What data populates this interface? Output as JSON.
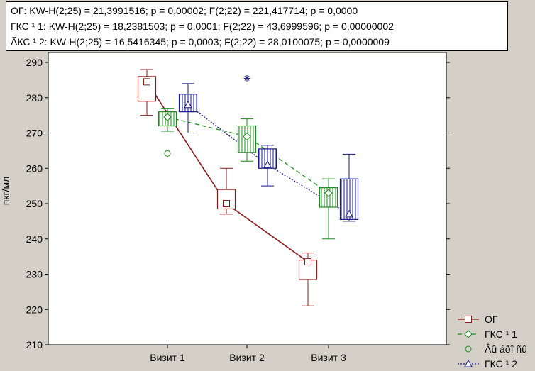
{
  "stats": [
    "ОГ:  KW-H(2;25) = 21,3991516; p = 0,00002;  F(2;22) = 221,417714; p = 0,0000",
    "ГКС ¹  1:  KW-H(2;25) = 18,2381503; p = 0,0001;  F(2;22) = 43,6999596; p = 0,00000002",
    "ÃКС ¹  2:  KW-H(2;25) = 16,5416345; p = 0,0003;  F(2;22) = 28,0100075; p = 0,0000009"
  ],
  "chart_data": {
    "type": "box",
    "categories": [
      "Визит 1",
      "Визит 2",
      "Визит 3"
    ],
    "ylabel": "пкг/мл",
    "xlabel": "",
    "ylim": [
      210,
      290
    ],
    "yticks": [
      210,
      220,
      230,
      240,
      250,
      260,
      270,
      280,
      290
    ],
    "grid": false,
    "legend_position": "bottom-right",
    "series": [
      {
        "name": "ОГ",
        "color": "#8b1a1a",
        "marker": "square",
        "line": "solid",
        "fill": "none",
        "boxes": [
          {
            "median": 284.5,
            "q1": 279,
            "q3": 286,
            "min": 275,
            "max": 288
          },
          {
            "median": 250,
            "q1": 248.5,
            "q3": 254,
            "min": 247,
            "max": 260
          },
          {
            "median": 233.5,
            "q1": 228.5,
            "q3": 234,
            "min": 221,
            "max": 236
          }
        ]
      },
      {
        "name": "ГКС ¹  1",
        "color": "#1e8b1e",
        "marker": "diamond",
        "line": "dashed",
        "fill": "vertical-hatch",
        "boxes": [
          {
            "median": 274.5,
            "q1": 272,
            "q3": 276,
            "min": 270.5,
            "max": 277
          },
          {
            "median": 269,
            "q1": 264.5,
            "q3": 272,
            "min": 262,
            "max": 274
          },
          {
            "median": 253,
            "q1": 249,
            "q3": 254.5,
            "min": 240,
            "max": 257
          }
        ]
      },
      {
        "name": "ÃКС ¹  2",
        "legend_label": "ГКС ¹  2",
        "color": "#1a1a8b",
        "marker": "triangle",
        "line": "dotted",
        "fill": "vertical-hatch",
        "boxes": [
          {
            "median": 278,
            "q1": 276,
            "q3": 281,
            "min": 270,
            "max": 284
          },
          {
            "median": 261,
            "q1": 260,
            "q3": 265.5,
            "min": 255,
            "max": 266.5
          },
          {
            "median": 247,
            "q1": 245.5,
            "q3": 257,
            "min": 245,
            "max": 264
          }
        ]
      }
    ],
    "outliers_label": "Âû áðî ñû",
    "outliers": [
      {
        "category": "Визит 1",
        "series": "ГКС ¹  1",
        "value": 264.2,
        "symbol": "circle",
        "color": "#1e8b1e"
      },
      {
        "category": "Визит 2",
        "series": "ГКС ¹  1",
        "value": 285.5,
        "symbol": "asterisk",
        "color": "#1a1a8b"
      }
    ]
  }
}
